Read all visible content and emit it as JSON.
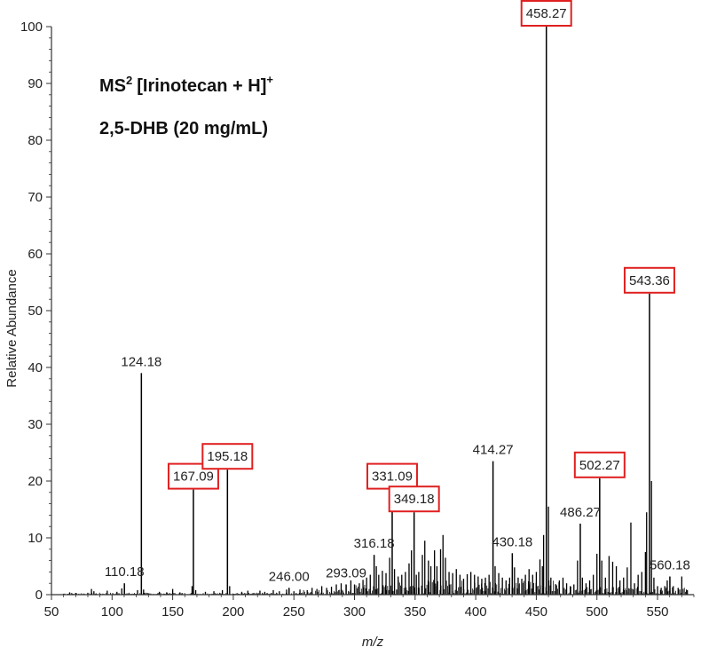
{
  "chart_data": {
    "type": "line",
    "style": "mass-spectrum-stick",
    "title_lines": {
      "line1_main": "MS",
      "line1_sup": "2",
      "line1_rest": "[Irinotecan + H]",
      "line1_charge": "+",
      "line2": "2,5-DHB (20 mg/mL)"
    },
    "xlabel": "m/z",
    "ylabel": "Relative Abundance",
    "xlim": [
      50,
      580
    ],
    "ylim": [
      0,
      100
    ],
    "x_ticks": [
      50,
      100,
      150,
      200,
      250,
      300,
      350,
      400,
      450,
      500,
      550
    ],
    "y_ticks": [
      0,
      10,
      20,
      30,
      40,
      50,
      60,
      70,
      80,
      90,
      100
    ],
    "highlight_color": "#e02020",
    "line_color": "#000000",
    "labeled_peaks": [
      {
        "mz": 110.18,
        "intensity": 2,
        "label": "110.18",
        "boxed": false
      },
      {
        "mz": 124.18,
        "intensity": 39,
        "label": "124.18",
        "boxed": false
      },
      {
        "mz": 167.09,
        "intensity": 18.5,
        "label": "167.09",
        "boxed": true
      },
      {
        "mz": 195.18,
        "intensity": 22,
        "label": "195.18",
        "boxed": true
      },
      {
        "mz": 246.0,
        "intensity": 1.2,
        "label": "246.00",
        "boxed": false
      },
      {
        "mz": 293.09,
        "intensity": 1.8,
        "label": "293.09",
        "boxed": false
      },
      {
        "mz": 316.18,
        "intensity": 7,
        "label": "316.18",
        "boxed": false
      },
      {
        "mz": 331.09,
        "intensity": 18.5,
        "label": "331.09",
        "boxed": true
      },
      {
        "mz": 349.18,
        "intensity": 14.5,
        "label": "349.18",
        "boxed": true
      },
      {
        "mz": 414.27,
        "intensity": 23.5,
        "label": "414.27",
        "boxed": false
      },
      {
        "mz": 430.18,
        "intensity": 7.3,
        "label": "430.18",
        "boxed": false
      },
      {
        "mz": 458.27,
        "intensity": 100,
        "label": "458.27",
        "boxed": true
      },
      {
        "mz": 486.27,
        "intensity": 12.5,
        "label": "486.27",
        "boxed": false
      },
      {
        "mz": 502.27,
        "intensity": 20.5,
        "label": "502.27",
        "boxed": true
      },
      {
        "mz": 543.36,
        "intensity": 53,
        "label": "543.36",
        "boxed": true
      },
      {
        "mz": 560.18,
        "intensity": 3.2,
        "label": "560.18",
        "boxed": false
      }
    ],
    "unlabeled_peaks": [
      [
        65,
        0.4
      ],
      [
        70,
        0.3
      ],
      [
        83,
        1.0
      ],
      [
        85,
        0.6
      ],
      [
        96,
        0.7
      ],
      [
        104,
        0.5
      ],
      [
        108,
        1.1
      ],
      [
        121,
        0.8
      ],
      [
        126,
        0.9
      ],
      [
        139,
        0.5
      ],
      [
        145,
        0.4
      ],
      [
        150,
        1.0
      ],
      [
        156,
        0.4
      ],
      [
        166,
        1.5
      ],
      [
        169,
        0.8
      ],
      [
        177,
        0.5
      ],
      [
        184,
        0.6
      ],
      [
        191,
        0.8
      ],
      [
        197,
        1.5
      ],
      [
        207,
        0.5
      ],
      [
        212,
        0.7
      ],
      [
        222,
        0.7
      ],
      [
        226,
        0.5
      ],
      [
        233,
        0.8
      ],
      [
        238,
        0.6
      ],
      [
        244,
        0.9
      ],
      [
        250,
        0.6
      ],
      [
        255,
        0.9
      ],
      [
        261,
        0.8
      ],
      [
        265,
        1.2
      ],
      [
        269,
        1.0
      ],
      [
        273,
        1.5
      ],
      [
        277,
        1.2
      ],
      [
        281,
        1.4
      ],
      [
        285,
        1.8
      ],
      [
        289,
        2.0
      ],
      [
        297,
        2.5
      ],
      [
        300,
        1.8
      ],
      [
        304,
        2.0
      ],
      [
        307,
        2.6
      ],
      [
        310,
        3.0
      ],
      [
        313,
        3.5
      ],
      [
        318,
        5.0
      ],
      [
        320,
        3.5
      ],
      [
        323,
        4.2
      ],
      [
        326,
        3.8
      ],
      [
        329,
        6.5
      ],
      [
        333,
        4.5
      ],
      [
        336,
        3.2
      ],
      [
        339,
        3.5
      ],
      [
        342,
        4.0
      ],
      [
        345,
        5.5
      ],
      [
        347,
        7.8
      ],
      [
        351,
        3.5
      ],
      [
        353,
        4.0
      ],
      [
        356,
        7.0
      ],
      [
        358,
        9.5
      ],
      [
        361,
        6.0
      ],
      [
        363,
        5.0
      ],
      [
        366,
        7.8
      ],
      [
        368,
        5.0
      ],
      [
        371,
        8.0
      ],
      [
        373,
        10.5
      ],
      [
        375,
        6.5
      ],
      [
        378,
        4.0
      ],
      [
        381,
        3.8
      ],
      [
        384,
        4.5
      ],
      [
        387,
        3.5
      ],
      [
        390,
        2.8
      ],
      [
        393,
        3.6
      ],
      [
        396,
        4.0
      ],
      [
        399,
        3.5
      ],
      [
        402,
        3.2
      ],
      [
        405,
        2.8
      ],
      [
        408,
        3.0
      ],
      [
        411,
        3.5
      ],
      [
        416,
        5.0
      ],
      [
        419,
        3.8
      ],
      [
        422,
        3.0
      ],
      [
        425,
        2.5
      ],
      [
        428,
        3.0
      ],
      [
        432,
        4.8
      ],
      [
        435,
        3.0
      ],
      [
        438,
        2.8
      ],
      [
        441,
        3.5
      ],
      [
        444,
        4.5
      ],
      [
        447,
        3.5
      ],
      [
        450,
        4.0
      ],
      [
        453,
        6.2
      ],
      [
        455,
        5.0
      ],
      [
        456,
        10.5
      ],
      [
        460,
        15.5
      ],
      [
        462,
        3.0
      ],
      [
        466,
        1.8
      ],
      [
        469,
        2.5
      ],
      [
        472,
        3.0
      ],
      [
        475,
        2.0
      ],
      [
        478,
        1.5
      ],
      [
        481,
        1.8
      ],
      [
        484,
        6.0
      ],
      [
        488,
        3.0
      ],
      [
        491,
        2.0
      ],
      [
        494,
        2.5
      ],
      [
        497,
        3.5
      ],
      [
        500,
        7.2
      ],
      [
        504,
        6.0
      ],
      [
        507,
        3.0
      ],
      [
        510,
        6.8
      ],
      [
        513,
        5.8
      ],
      [
        516,
        5.0
      ],
      [
        519,
        2.5
      ],
      [
        522,
        3.0
      ],
      [
        525,
        4.8
      ],
      [
        528,
        12.7
      ],
      [
        531,
        2.0
      ],
      [
        534,
        3.5
      ],
      [
        537,
        4.0
      ],
      [
        540,
        7.5
      ],
      [
        541,
        14.5
      ],
      [
        545,
        20.0
      ],
      [
        547,
        3.0
      ],
      [
        550,
        1.5
      ],
      [
        553,
        1.2
      ],
      [
        556,
        1.5
      ],
      [
        558,
        2.5
      ],
      [
        563,
        1.5
      ],
      [
        567,
        1.2
      ],
      [
        570,
        3.2
      ],
      [
        574,
        0.8
      ]
    ]
  }
}
